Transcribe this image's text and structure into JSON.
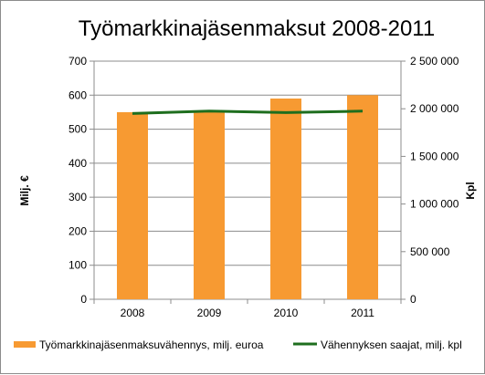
{
  "chart_data": {
    "type": "bar",
    "title": "Työmarkkinajäsenmaksut 2008-2011",
    "categories": [
      "2008",
      "2009",
      "2010",
      "2011"
    ],
    "ylabel": "Milj. €",
    "y2label": "Kpl",
    "ylim": [
      0,
      700
    ],
    "y2lim": [
      0,
      2500000
    ],
    "y_ticks": [
      "0",
      "100",
      "200",
      "300",
      "400",
      "500",
      "600",
      "700"
    ],
    "y2_ticks": [
      "0",
      "500 000",
      "1 000 000",
      "1 500 000",
      "2 000 000",
      "2 500 000"
    ],
    "grid": true,
    "legend_position": "bottom",
    "series": [
      {
        "name": "Työmarkkinajäsenmaksuvähennys, milj. euroa",
        "type": "bar",
        "axis": "left",
        "color": "#f79a32",
        "values": [
          550,
          550,
          590,
          600
        ]
      },
      {
        "name": "Vähennyksen saajat, milj. kpl",
        "type": "line",
        "axis": "right",
        "color": "#1e6e1e",
        "values": [
          1950000,
          1975000,
          1960000,
          1975000
        ]
      }
    ]
  }
}
